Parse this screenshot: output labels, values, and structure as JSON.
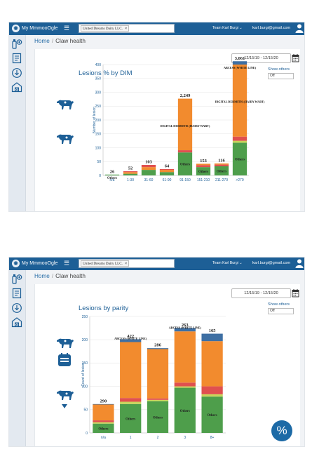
{
  "app": {
    "brand": "My MmmooOgle",
    "farm_chip": "United Dreams Dairy LLC.",
    "farm_chip_remove": "×",
    "team": "Team Karl Burgi ⌄",
    "email": "karl.burgi@gmail.com"
  },
  "sidebar_icons": [
    "bottle-cow-icon",
    "report-icon",
    "download-icon",
    "barn-icon"
  ],
  "breadcrumb": {
    "home": "Home",
    "sep": "/",
    "current": "Claw health"
  },
  "date_range": "12/15/19 - 12/15/20",
  "show_others": {
    "label": "Show others",
    "value": "Off"
  },
  "colors": {
    "primary": "#1d5f96",
    "green": "#4e9e4b",
    "orange": "#f28b2e",
    "red": "#e0504f",
    "blue": "#3e6fa3",
    "yellow": "#c9d35a"
  },
  "screens": [
    {
      "title": "Lesions % by DIM",
      "chart_data": {
        "type": "bar",
        "stacked": true,
        "ylabel": "Number of lesion",
        "ylim": [
          0,
          400
        ],
        "yticks": [
          0,
          50,
          100,
          150,
          200,
          250,
          300,
          350,
          400
        ],
        "categories": [
          "n/a",
          "1-30",
          "31-60",
          "61-90",
          "91-150",
          "151-210",
          "211-270",
          ">270"
        ],
        "totals": [
          "26",
          "52",
          "103",
          "64",
          "2,249",
          "153",
          "116",
          "3,061"
        ],
        "segments": [
          [
            {
              "v": 3,
              "c": "green",
              "label": "Others"
            }
          ],
          [
            {
              "v": 6,
              "c": "green"
            },
            {
              "v": 6,
              "c": "orange"
            },
            {
              "v": 3,
              "c": "red"
            }
          ],
          [
            {
              "v": 20,
              "c": "green"
            },
            {
              "v": 10,
              "c": "orange"
            },
            {
              "v": 8,
              "c": "red"
            }
          ],
          [
            {
              "v": 12,
              "c": "green"
            },
            {
              "v": 8,
              "c": "orange"
            },
            {
              "v": 3,
              "c": "red"
            }
          ],
          [
            {
              "v": 83,
              "c": "green",
              "label": "Others"
            },
            {
              "v": 8,
              "c": "red"
            },
            {
              "v": 186,
              "c": "orange"
            }
          ],
          [
            {
              "v": 30,
              "c": "green",
              "label": "Others"
            },
            {
              "v": 7,
              "c": "red"
            },
            {
              "v": 5,
              "c": "orange"
            }
          ],
          [
            {
              "v": 33,
              "c": "green",
              "label": "Others"
            },
            {
              "v": 6,
              "c": "red"
            },
            {
              "v": 4,
              "c": "orange"
            }
          ],
          [
            {
              "v": 118,
              "c": "green",
              "label": "Others"
            },
            {
              "v": 7,
              "c": "yellow"
            },
            {
              "v": 15,
              "c": "red"
            },
            {
              "v": 260,
              "c": "orange"
            },
            {
              "v": 12,
              "c": "blue"
            }
          ]
        ],
        "annotations": [
          {
            "cat": 7,
            "y": 385,
            "text": "ABCESS (WHITE LINE)"
          },
          {
            "cat": 7,
            "y": 262,
            "text": "DIGITAL DERMITIS (HAIRY WART)"
          },
          {
            "cat": 4,
            "y": 175,
            "text": "DIGITAL DERMITIS (HAIRY WART)"
          }
        ]
      }
    },
    {
      "title": "Lesions by parity",
      "chart_data": {
        "type": "bar",
        "stacked": true,
        "ylabel": "Count of lesion",
        "ylim": [
          0,
          250
        ],
        "yticks": [
          0,
          50,
          100,
          150,
          200,
          250
        ],
        "categories": [
          "n/a",
          "1",
          "2",
          "3",
          "8+"
        ],
        "totals": [
          "290",
          "422",
          "286",
          "263",
          "165"
        ],
        "segments": [
          [
            {
              "v": 20,
              "c": "green",
              "label": "Others"
            },
            {
              "v": 3,
              "c": "yellow"
            },
            {
              "v": 4,
              "c": "red"
            },
            {
              "v": 34,
              "c": "orange"
            },
            {
              "v": 1,
              "c": "blue"
            }
          ],
          [
            {
              "v": 62,
              "c": "green",
              "label": "Others"
            },
            {
              "v": 5,
              "c": "yellow"
            },
            {
              "v": 8,
              "c": "red"
            },
            {
              "v": 120,
              "c": "orange"
            },
            {
              "v": 6,
              "c": "blue"
            }
          ],
          [
            {
              "v": 68,
              "c": "green",
              "label": "Others"
            },
            {
              "v": 3,
              "c": "yellow"
            },
            {
              "v": 3,
              "c": "red"
            },
            {
              "v": 106,
              "c": "orange"
            },
            {
              "v": 2,
              "c": "blue"
            }
          ],
          [
            {
              "v": 97,
              "c": "green",
              "label": "Others"
            },
            {
              "v": 3,
              "c": "yellow"
            },
            {
              "v": 8,
              "c": "red"
            },
            {
              "v": 110,
              "c": "orange"
            },
            {
              "v": 7,
              "c": "blue"
            }
          ],
          [
            {
              "v": 78,
              "c": "green",
              "label": "Others"
            },
            {
              "v": 5,
              "c": "yellow"
            },
            {
              "v": 17,
              "c": "red"
            },
            {
              "v": 97,
              "c": "orange"
            },
            {
              "v": 16,
              "c": "blue"
            }
          ]
        ],
        "annotations": [
          {
            "cat": 1,
            "y": 200,
            "text": "ABCESS (WHITE LINE)"
          },
          {
            "cat": 3,
            "y": 224,
            "text": "ABCESS (WHITE LINE)"
          }
        ]
      }
    }
  ],
  "percent_button": "%"
}
